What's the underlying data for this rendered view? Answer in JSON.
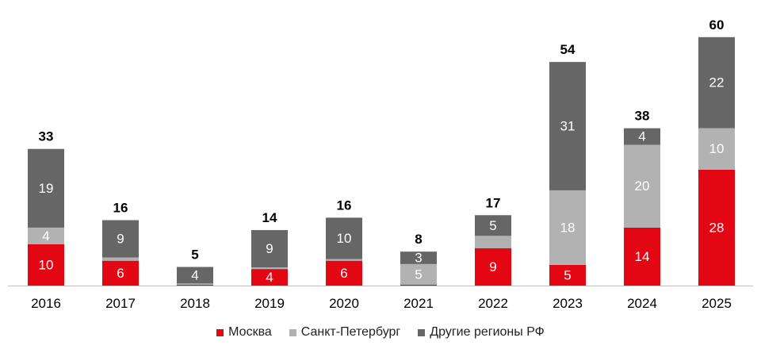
{
  "chart_data": {
    "type": "bar",
    "stacked": true,
    "categories": [
      "2016",
      "2017",
      "2018",
      "2019",
      "2020",
      "2021",
      "2022",
      "2023",
      "2024",
      "2025"
    ],
    "series": [
      {
        "name": "Москва",
        "color": "#E30613",
        "values": [
          10,
          6,
          0.2,
          4,
          6,
          0.2,
          9,
          5,
          14,
          28
        ],
        "labels": [
          "10",
          "6",
          "",
          "4",
          "6",
          "",
          "9",
          "5",
          "14",
          "28"
        ]
      },
      {
        "name": "Санкт-Петербург",
        "color": "#B2B2B2",
        "values": [
          4,
          0.8,
          0.3,
          0.4,
          0.4,
          5,
          3,
          18,
          20,
          10
        ],
        "labels": [
          "4",
          "",
          "",
          "",
          "",
          "5",
          "",
          "18",
          "20",
          "10"
        ]
      },
      {
        "name": "Другие регионы РФ",
        "color": "#666666",
        "values": [
          19,
          9,
          4,
          9,
          10,
          3,
          5,
          31,
          4,
          22
        ],
        "labels": [
          "19",
          "9",
          "4",
          "9",
          "10",
          "3",
          "5",
          "31",
          "4",
          "22"
        ]
      }
    ],
    "totals": [
      "33",
      "16",
      "5",
      "14",
      "16",
      "8",
      "17",
      "54",
      "38",
      "60"
    ],
    "ylim": [
      0,
      60
    ],
    "legend_position": "bottom",
    "grid": false
  },
  "legend": [
    {
      "name": "Москва",
      "color": "#E30613"
    },
    {
      "name": "Санкт-Петербург",
      "color": "#B2B2B2"
    },
    {
      "name": "Другие регионы РФ",
      "color": "#666666"
    }
  ]
}
